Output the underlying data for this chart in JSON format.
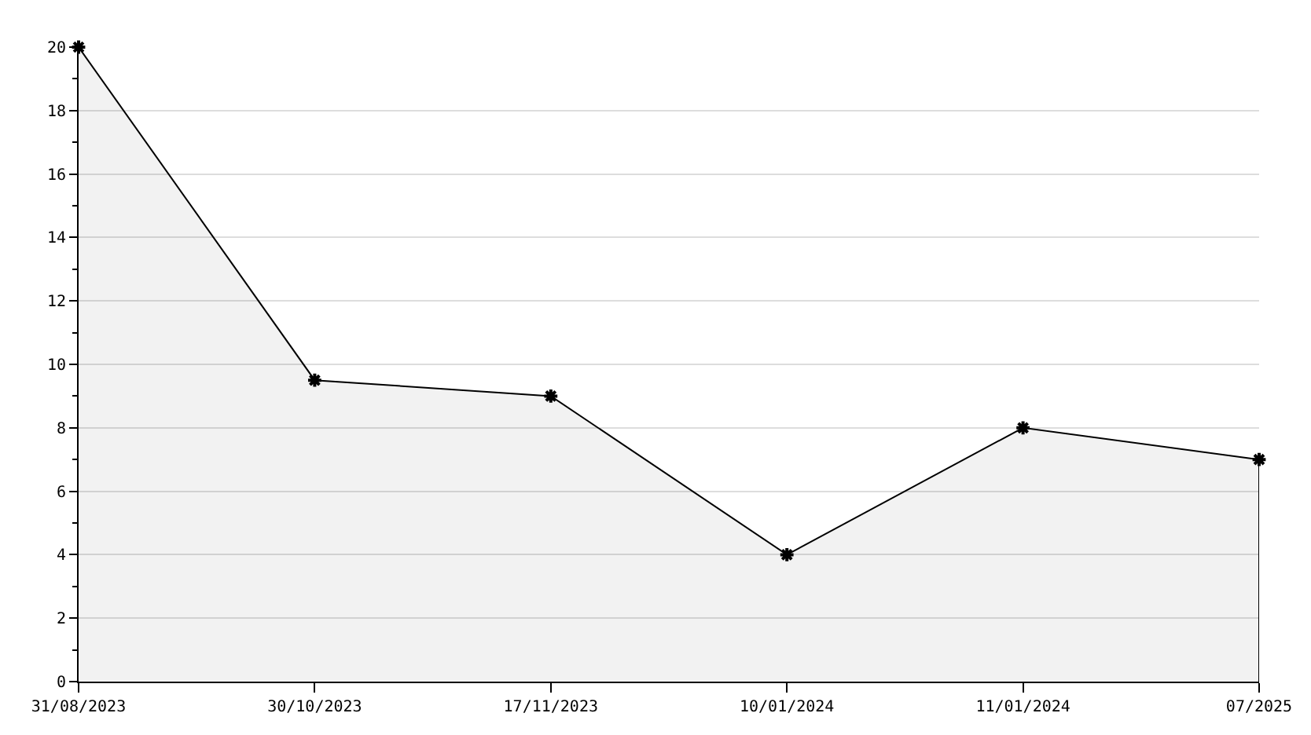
{
  "chart_data": {
    "type": "area",
    "categories": [
      "31/08/2023",
      "30/10/2023",
      "17/11/2023",
      "10/01/2024",
      "11/01/2024",
      "07/2025"
    ],
    "series": [
      {
        "color": "#000000",
        "values": [
          20,
          9.5,
          9,
          4,
          8,
          7
        ]
      }
    ],
    "ylim": [
      0,
      20
    ],
    "yticks": [
      0,
      {
        "value": 1,
        "label": null
      },
      2,
      {
        "value": 3,
        "label": null
      },
      4,
      {
        "value": 5,
        "label": null
      },
      6,
      {
        "value": 7,
        "label": null
      },
      8,
      {
        "value": 9,
        "label": null
      },
      10,
      {
        "value": 11,
        "label": null
      },
      12,
      {
        "value": 13,
        "label": null
      },
      14,
      {
        "value": 15,
        "label": null
      },
      16,
      {
        "value": 17,
        "label": null
      },
      18,
      {
        "value": 19,
        "label": null
      },
      20
    ],
    "grid": "y",
    "marker": "cross",
    "line_style": "solid"
  }
}
